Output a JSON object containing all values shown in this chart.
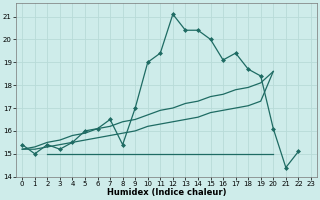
{
  "xlabel": "Humidex (Indice chaleur)",
  "background_color": "#ceecea",
  "grid_color": "#b8dbd8",
  "line_color": "#1e6b63",
  "xlim": [
    -0.5,
    23.5
  ],
  "ylim": [
    14,
    21.6
  ],
  "yticks": [
    14,
    15,
    16,
    17,
    18,
    19,
    20,
    21
  ],
  "xticks": [
    0,
    1,
    2,
    3,
    4,
    5,
    6,
    7,
    8,
    9,
    10,
    11,
    12,
    13,
    14,
    15,
    16,
    17,
    18,
    19,
    20,
    21,
    22,
    23
  ],
  "line1_x": [
    0,
    1,
    2,
    3,
    4,
    5,
    6,
    7,
    8,
    9,
    10,
    11,
    12,
    13,
    14,
    15,
    16,
    17,
    18,
    19,
    20,
    21,
    22
  ],
  "line1_y": [
    15.4,
    15.0,
    15.4,
    15.2,
    15.5,
    16.0,
    16.1,
    16.5,
    15.4,
    17.0,
    19.0,
    19.4,
    21.1,
    20.4,
    20.4,
    20.0,
    19.1,
    19.4,
    18.7,
    18.4,
    16.1,
    14.4,
    15.1
  ],
  "line2_x": [
    0,
    1,
    2,
    3,
    4,
    5,
    6,
    7,
    8,
    9,
    10,
    11,
    12,
    13,
    14,
    15,
    16,
    17,
    18,
    19,
    20
  ],
  "line2_y": [
    15.2,
    15.3,
    15.5,
    15.6,
    15.8,
    15.9,
    16.1,
    16.2,
    16.4,
    16.5,
    16.7,
    16.9,
    17.0,
    17.2,
    17.3,
    17.5,
    17.6,
    17.8,
    17.9,
    18.1,
    18.6
  ],
  "line3_x": [
    0,
    1,
    2,
    3,
    4,
    5,
    6,
    7,
    8,
    9,
    10,
    11,
    12,
    13,
    14,
    15,
    16,
    17,
    18,
    19,
    20
  ],
  "line3_y": [
    15.2,
    15.2,
    15.3,
    15.4,
    15.5,
    15.6,
    15.7,
    15.8,
    15.9,
    16.0,
    16.2,
    16.3,
    16.4,
    16.5,
    16.6,
    16.8,
    16.9,
    17.0,
    17.1,
    17.3,
    18.6
  ],
  "line4_x": [
    2,
    3,
    4,
    5,
    6,
    7,
    8,
    9,
    10,
    11,
    12,
    13,
    14,
    15,
    16,
    17,
    18,
    19,
    20
  ],
  "line4_y": [
    15.0,
    15.0,
    15.0,
    15.0,
    15.0,
    15.0,
    15.0,
    15.0,
    15.0,
    15.0,
    15.0,
    15.0,
    15.0,
    15.0,
    15.0,
    15.0,
    15.0,
    15.0,
    15.0
  ]
}
